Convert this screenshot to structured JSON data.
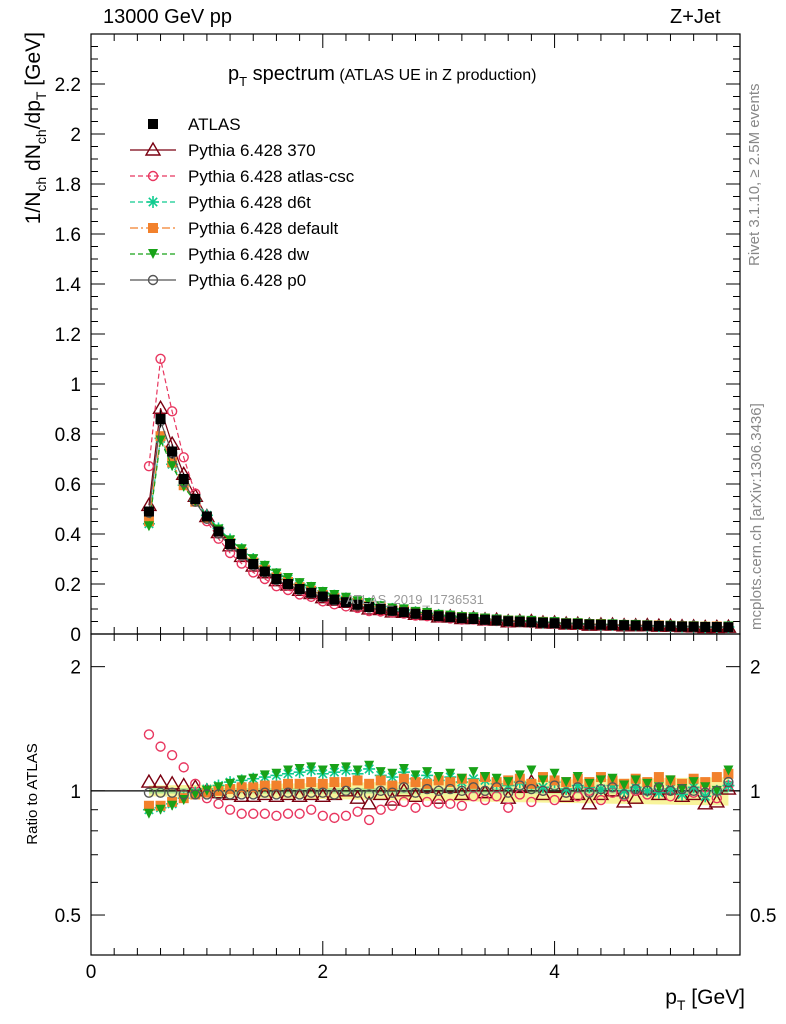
{
  "header": {
    "left": "13000 GeV pp",
    "right": "Z+Jet"
  },
  "side_labels": {
    "rivet": "Rivet 3.1.10, ≥ 2.5M events",
    "mcplots": "mcplots.cern.ch [arXiv:1306.3436]"
  },
  "chart_data": {
    "type": "scatter",
    "title_main": "p",
    "title_sub": "T",
    "title_rest": " spectrum",
    "title_note": "(ATLAS UE in Z production)",
    "watermark": "ATLAS_2019_I1736531",
    "xlabel": {
      "main": "p",
      "sub": "T",
      "rest": " [GeV]"
    },
    "ylabel_main": "1/N",
    "ylabel_sub1": "ch",
    "ylabel_mid": " dN",
    "ylabel_sub2": "ch",
    "ylabel_mid2": "/dp",
    "ylabel_sub3": "T",
    "ylabel_rest": " [GeV]",
    "ratio_ylabel": "Ratio to ATLAS",
    "xlim": [
      0,
      5.6
    ],
    "ylim": [
      0,
      2.4
    ],
    "ratio_ylim": [
      0.4,
      2.4
    ],
    "x_ticks": [
      "0",
      "2",
      "4"
    ],
    "y_ticks": [
      "0",
      "0.2",
      "0.4",
      "0.6",
      "0.8",
      "1",
      "1.2",
      "1.4",
      "1.6",
      "1.8",
      "2",
      "2.2"
    ],
    "ratio_ticks": [
      "0.5",
      "1",
      "2"
    ],
    "x": [
      0.5,
      0.6,
      0.7,
      0.8,
      0.9,
      1.0,
      1.1,
      1.2,
      1.3,
      1.4,
      1.5,
      1.6,
      1.7,
      1.8,
      1.9,
      2.0,
      2.1,
      2.2,
      2.3,
      2.4,
      2.5,
      2.6,
      2.7,
      2.8,
      2.9,
      3.0,
      3.1,
      3.2,
      3.3,
      3.4,
      3.5,
      3.6,
      3.7,
      3.8,
      3.9,
      4.0,
      4.1,
      4.2,
      4.3,
      4.4,
      4.5,
      4.6,
      4.7,
      4.8,
      4.9,
      5.0,
      5.1,
      5.2,
      5.3,
      5.4,
      5.5
    ],
    "data": {
      "name": "ATLAS",
      "color": "#000000",
      "values": [
        0.49,
        0.86,
        0.73,
        0.62,
        0.54,
        0.47,
        0.41,
        0.36,
        0.32,
        0.28,
        0.25,
        0.22,
        0.2,
        0.18,
        0.165,
        0.15,
        0.138,
        0.127,
        0.117,
        0.108,
        0.1,
        0.093,
        0.087,
        0.081,
        0.076,
        0.071,
        0.067,
        0.063,
        0.06,
        0.057,
        0.054,
        0.051,
        0.049,
        0.047,
        0.045,
        0.043,
        0.041,
        0.04,
        0.038,
        0.037,
        0.036,
        0.035,
        0.034,
        0.033,
        0.032,
        0.031,
        0.03,
        0.029,
        0.028,
        0.028,
        0.027
      ]
    },
    "series": [
      {
        "name": "Pythia 6.428 370",
        "color": "#7a0010",
        "marker": "triangle-open",
        "dash": "",
        "ratio": [
          1.05,
          1.05,
          1.04,
          1.03,
          1.02,
          1.0,
          0.99,
          0.98,
          0.97,
          0.97,
          0.98,
          0.97,
          0.98,
          0.97,
          0.98,
          0.97,
          0.98,
          1.0,
          0.96,
          0.93,
          0.98,
          0.95,
          1.0,
          0.97,
          1.02,
          0.96,
          1.02,
          0.98,
          1.03,
          0.99,
          1.03,
          0.96,
          1.02,
          1.05,
          0.98,
          1.02,
          0.97,
          0.98,
          0.93,
          0.98,
          1.0,
          0.94,
          0.96,
          1.01,
          0.98,
          1.01,
          0.97,
          0.98,
          0.93,
          0.94,
          1.01
        ]
      },
      {
        "name": "Pythia 6.428 atlas-csc",
        "color": "#e8365f",
        "marker": "circle-open",
        "dash": "5,3",
        "ratio": [
          1.37,
          1.28,
          1.22,
          1.14,
          1.04,
          0.96,
          0.93,
          0.9,
          0.88,
          0.88,
          0.88,
          0.87,
          0.88,
          0.88,
          0.9,
          0.87,
          0.86,
          0.87,
          0.89,
          0.85,
          0.9,
          0.92,
          0.94,
          0.91,
          0.94,
          0.93,
          0.93,
          0.92,
          0.97,
          0.95,
          0.97,
          0.91,
          0.98,
          0.94,
          1.0,
          0.95,
          0.99,
          0.97,
          1.0,
          0.95,
          0.99,
          0.97,
          1.0,
          0.98,
          1.01,
          0.97,
          1.01,
          0.99,
          1.02,
          0.96,
          1.03
        ]
      },
      {
        "name": "Pythia 6.428 d6t",
        "color": "#0fcb8f",
        "marker": "star",
        "dash": "5,3",
        "ratio": [
          0.9,
          0.91,
          0.93,
          0.96,
          0.99,
          1.01,
          1.03,
          1.05,
          1.06,
          1.07,
          1.08,
          1.09,
          1.1,
          1.11,
          1.12,
          1.1,
          1.11,
          1.12,
          1.1,
          1.13,
          1.09,
          1.08,
          1.11,
          1.07,
          1.09,
          1.06,
          1.08,
          1.05,
          1.07,
          1.06,
          1.04,
          1.03,
          1.05,
          1.04,
          1.02,
          1.05,
          1.01,
          1.03,
          1.02,
          1.01,
          1.03,
          1.0,
          1.02,
          1.0,
          0.99,
          1.01,
          0.98,
          1.02,
          0.97,
          1.0,
          1.03
        ]
      },
      {
        "name": "Pythia 6.428 default",
        "color": "#f2812c",
        "marker": "square",
        "dash": "8,3,2,3",
        "ratio": [
          0.92,
          0.92,
          0.94,
          0.96,
          0.98,
          0.99,
          1.0,
          1.01,
          1.02,
          1.02,
          1.03,
          1.03,
          1.04,
          1.04,
          1.05,
          1.04,
          1.05,
          1.05,
          1.06,
          1.04,
          1.06,
          1.03,
          1.07,
          1.05,
          1.04,
          1.06,
          1.05,
          1.07,
          1.04,
          1.08,
          1.05,
          1.06,
          1.07,
          1.04,
          1.08,
          1.06,
          1.05,
          1.07,
          1.05,
          1.08,
          1.06,
          1.04,
          1.07,
          1.05,
          1.08,
          1.06,
          1.04,
          1.07,
          1.05,
          1.08,
          1.1
        ]
      },
      {
        "name": "Pythia 6.428 dw",
        "color": "#18a218",
        "marker": "triangle-down",
        "dash": "5,3",
        "ratio": [
          0.88,
          0.9,
          0.92,
          0.95,
          0.98,
          1.0,
          1.02,
          1.04,
          1.06,
          1.07,
          1.09,
          1.1,
          1.12,
          1.13,
          1.14,
          1.12,
          1.13,
          1.14,
          1.12,
          1.15,
          1.11,
          1.1,
          1.13,
          1.09,
          1.11,
          1.08,
          1.1,
          1.07,
          1.11,
          1.08,
          1.07,
          1.05,
          1.09,
          1.12,
          1.06,
          1.1,
          1.05,
          1.08,
          1.04,
          1.06,
          1.07,
          1.03,
          1.06,
          1.04,
          1.02,
          1.06,
          1.01,
          1.05,
          1.02,
          1.0,
          1.12
        ]
      },
      {
        "name": "Pythia 6.428 p0",
        "color": "#555555",
        "marker": "circle-open",
        "dash": "",
        "ratio": [
          0.99,
          0.99,
          0.99,
          0.98,
          0.98,
          0.98,
          0.98,
          0.98,
          0.98,
          0.98,
          0.99,
          0.98,
          0.99,
          0.98,
          0.99,
          0.99,
          0.98,
          1.0,
          0.99,
          0.98,
          1.0,
          0.99,
          1.02,
          0.99,
          1.01,
          1.0,
          1.01,
          1.0,
          1.02,
          1.0,
          1.02,
          0.99,
          1.03,
          1.01,
          1.0,
          1.03,
          0.99,
          1.02,
          0.99,
          1.01,
          1.02,
          0.98,
          1.01,
          1.0,
          1.02,
          1.0,
          1.01,
          1.0,
          0.99,
          1.0,
          1.05
        ]
      }
    ],
    "legend_position": "top-left"
  }
}
